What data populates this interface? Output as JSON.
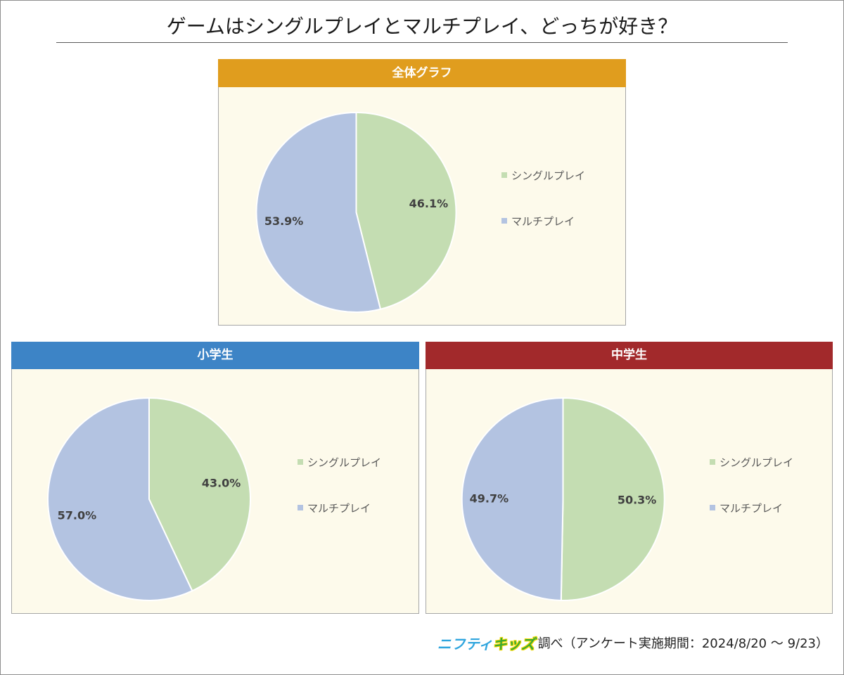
{
  "title": "ゲームはシングルプレイとマルチプレイ、どっちが好き？",
  "chart_data": [
    {
      "type": "pie",
      "title": "全体グラフ",
      "categories": [
        "シングルプレイ",
        "マルチプレイ"
      ],
      "values": [
        46.1,
        53.9
      ],
      "data_labels": [
        "46.1%",
        "53.9%"
      ],
      "colors": [
        "#C4DDB2",
        "#B3C3E1"
      ],
      "header_color": "#E09D1E",
      "legend": "right"
    },
    {
      "type": "pie",
      "title": "小学生",
      "categories": [
        "シングルプレイ",
        "マルチプレイ"
      ],
      "values": [
        43.0,
        57.0
      ],
      "data_labels": [
        "43.0%",
        "57.0%"
      ],
      "colors": [
        "#C4DDB2",
        "#B3C3E1"
      ],
      "header_color": "#3D84C6",
      "legend": "right"
    },
    {
      "type": "pie",
      "title": "中学生",
      "categories": [
        "シングルプレイ",
        "マルチプレイ"
      ],
      "values": [
        50.3,
        49.7
      ],
      "data_labels": [
        "50.3%",
        "49.7%"
      ],
      "colors": [
        "#C4DDB2",
        "#B3C3E1"
      ],
      "header_color": "#A2292B",
      "legend": "right"
    }
  ],
  "footer": {
    "logo": {
      "nifty": "ニフティ",
      "kids": "キッズ"
    },
    "credit": "調べ（アンケート実施期間：2024/8/20 ～ 9/23）"
  }
}
